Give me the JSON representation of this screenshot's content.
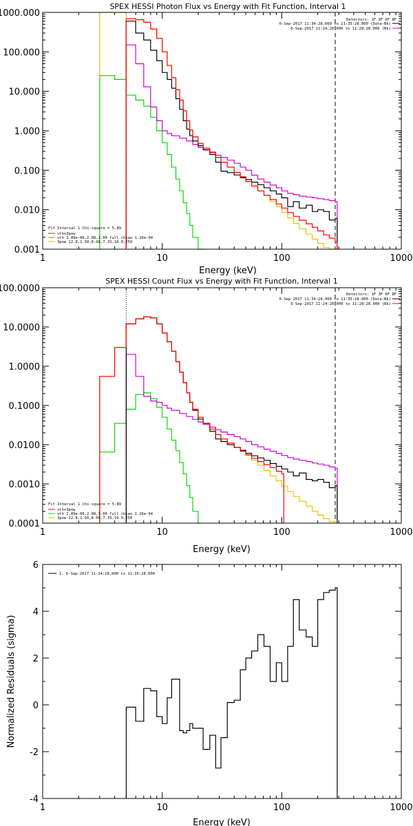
{
  "chart_data": [
    {
      "type": "line",
      "title": "SPEX HESSI Photon Flux vs Energy with Fit Function, Interval 1",
      "xlabel": "Energy (keV)",
      "ylabel": "",
      "xscale": "log",
      "yscale": "log",
      "xlim": [
        1,
        1000
      ],
      "ylim": [
        0.001,
        1000
      ],
      "x_tick_labels": [
        "1",
        "10",
        "100",
        "1000"
      ],
      "y_tick_labels": [
        "0.001",
        "0.010",
        "0.100",
        "1.000",
        "10.000",
        "100.000",
        "1000.000"
      ],
      "header_lines": [
        "Detectors: 1F 3F 6F 8F",
        "6-Sep-2017 11:34:28.000 to 11:35:28.000 (Data-Bk)",
        "6-Sep-2017 11:24:28.000 to 11:28:28.000 (Bk)"
      ],
      "legend_lines": [
        "Fit Interval 1    Chi-square = 5.89",
        "vth+3pow",
        "vth 2.89e-06,2.08,1.00  full chian 1.26e-04",
        "3pow 22.8,1.50,8.08,7.33,10.0,250"
      ],
      "fit_lower_keV": 5,
      "fit_upper_keV": 280,
      "series": [
        {
          "name": "data-bk",
          "color": "#000000",
          "x": [
            5,
            6,
            7,
            8,
            9,
            10,
            11,
            12,
            13,
            14,
            15,
            16,
            17,
            18,
            20,
            22,
            25,
            28,
            31,
            35,
            40,
            45,
            50,
            56,
            63,
            71,
            80,
            90,
            100,
            112,
            125,
            140,
            160,
            180,
            200,
            224,
            250,
            280
          ],
          "y": [
            600,
            300,
            200,
            110,
            60,
            30,
            20,
            12,
            6.5,
            3.5,
            1.8,
            1.1,
            0.75,
            0.55,
            0.42,
            0.33,
            0.25,
            0.16,
            0.095,
            0.087,
            0.076,
            0.065,
            0.058,
            0.05,
            0.043,
            0.036,
            0.03,
            0.025,
            0.02,
            0.012,
            0.016,
            0.011,
            0.013,
            0.009,
            0.01,
            0.009,
            0.0055,
            0.006
          ]
        },
        {
          "name": "vth+3pow",
          "color": "#ff0000",
          "x": [
            5,
            6,
            7,
            8,
            9,
            10,
            11,
            12,
            13,
            14,
            15,
            16,
            17,
            18,
            20,
            22,
            25,
            28,
            31,
            35,
            40,
            45,
            50,
            56,
            63,
            71,
            80,
            90,
            100,
            112,
            125,
            140,
            160,
            180,
            200,
            224,
            250,
            280
          ],
          "y": [
            690,
            650,
            560,
            380,
            220,
            100,
            45,
            22,
            11,
            6,
            3.2,
            1.8,
            1.05,
            0.7,
            0.48,
            0.36,
            0.28,
            0.21,
            0.16,
            0.12,
            0.088,
            0.068,
            0.052,
            0.04,
            0.03,
            0.023,
            0.018,
            0.014,
            0.011,
            0.0085,
            0.0068,
            0.0054,
            0.0044,
            0.0036,
            0.0029,
            0.0023,
            0.0019,
            0.0015
          ]
        },
        {
          "name": "vth",
          "color": "#00dd00",
          "x": [
            3,
            4,
            5,
            6,
            7,
            8,
            9,
            10,
            11,
            12,
            13,
            14,
            15,
            16,
            17,
            18,
            20,
            22
          ],
          "y": [
            25,
            20,
            8,
            6,
            4.2,
            2.2,
            1.0,
            0.5,
            0.25,
            0.12,
            0.06,
            0.03,
            0.015,
            0.008,
            0.004,
            0.002,
            0.001,
            0.0007
          ]
        },
        {
          "name": "3pow",
          "color": "#f0c000",
          "x": [
            3,
            4,
            5,
            6,
            7,
            8,
            9,
            10,
            11,
            12,
            13,
            14,
            15,
            16,
            17,
            18,
            20,
            22,
            25,
            28,
            31,
            35,
            40,
            45,
            50,
            56,
            63,
            71,
            80,
            90,
            100,
            112,
            125,
            140,
            160,
            180,
            200,
            224,
            250,
            280
          ],
          "y": [
            1000,
            1000,
            690,
            650,
            560,
            380,
            220,
            100,
            45,
            22,
            11,
            6,
            3.2,
            1.8,
            1.05,
            0.7,
            0.48,
            0.36,
            0.28,
            0.21,
            0.16,
            0.12,
            0.088,
            0.068,
            0.052,
            0.04,
            0.03,
            0.023,
            0.016,
            0.012,
            0.0085,
            0.0062,
            0.0045,
            0.0033,
            0.0024,
            0.0018,
            0.0014,
            0.0011,
            0.0009,
            0.0007
          ]
        },
        {
          "name": "background",
          "color": "#cc00cc",
          "x": [
            5,
            6,
            7,
            8,
            9,
            10,
            11,
            12,
            14,
            16,
            18,
            20,
            22,
            25,
            28,
            31,
            35,
            40,
            45,
            50,
            56,
            63,
            71,
            80,
            90,
            100,
            112,
            125,
            140,
            160,
            180,
            200,
            224,
            250,
            280
          ],
          "y": [
            150,
            50,
            13,
            4,
            1.8,
            1.0,
            0.85,
            0.75,
            0.65,
            0.55,
            0.45,
            0.38,
            0.33,
            0.29,
            0.24,
            0.21,
            0.18,
            0.15,
            0.12,
            0.1,
            0.075,
            0.06,
            0.05,
            0.042,
            0.036,
            0.03,
            0.026,
            0.024,
            0.022,
            0.021,
            0.02,
            0.019,
            0.018,
            0.017,
            0.016
          ]
        }
      ]
    },
    {
      "type": "line",
      "title": "SPEX HESSI Count Flux vs Energy with Fit Function, Interval 1",
      "xlabel": "Energy (keV)",
      "ylabel": "",
      "xscale": "log",
      "yscale": "log",
      "xlim": [
        1,
        1000
      ],
      "ylim": [
        0.0001,
        100
      ],
      "x_tick_labels": [
        "1",
        "10",
        "100",
        "1000"
      ],
      "y_tick_labels": [
        "0.0001",
        "0.0010",
        "0.0100",
        "0.1000",
        "1.0000",
        "10.0000",
        "100.0000"
      ],
      "header_lines": [
        "Detectors: 1F 3F 6F 8F",
        "6-Sep-2017 11:34:28.000 to 11:35:28.000 (Data-Bk)",
        "6-Sep-2017 11:24:28.000 to 11:28:28.000 (Bk)"
      ],
      "legend_lines": [
        "Fit Interval 1    Chi-square = 5.89",
        "vth+3pow",
        "vth 2.89e-06,2.08,1.00  full chian 1.26e-04",
        "3pow 22.8,1.50,8.08,7.33,10.0,250"
      ],
      "fit_lower_keV": 5,
      "fit_upper_keV": 280,
      "series": [
        {
          "name": "data-bk",
          "color": "#000000",
          "x": [
            5,
            6,
            7,
            8,
            9,
            10,
            11,
            12,
            13,
            14,
            15,
            16,
            17,
            18,
            20,
            22,
            25,
            28,
            31,
            35,
            40,
            45,
            50,
            56,
            63,
            71,
            80,
            90,
            100,
            112,
            125,
            140,
            160,
            180,
            200,
            224,
            250,
            280
          ],
          "y": [
            12,
            16,
            18,
            17,
            12,
            7,
            4.2,
            2.4,
            1.3,
            0.7,
            0.38,
            0.21,
            0.12,
            0.075,
            0.045,
            0.035,
            0.022,
            0.014,
            0.012,
            0.01,
            0.0085,
            0.0072,
            0.006,
            0.0052,
            0.0046,
            0.004,
            0.0033,
            0.0028,
            0.0024,
            0.002,
            0.0016,
            0.0019,
            0.0013,
            0.0012,
            0.0013,
            0.0011,
            0.0008,
            0.0009
          ]
        },
        {
          "name": "vth+3pow",
          "color": "#ff0000",
          "x": [
            3,
            4,
            5,
            6,
            7,
            8,
            9,
            10,
            11,
            12,
            13,
            14,
            15,
            16,
            17,
            18,
            20,
            22,
            25,
            28,
            31,
            35,
            40,
            45,
            50,
            56,
            63,
            71,
            80,
            90,
            100
          ],
          "y": [
            0.55,
            3.0,
            12,
            16,
            18,
            17,
            12,
            7,
            4.2,
            2.4,
            1.3,
            0.7,
            0.38,
            0.21,
            0.12,
            0.08,
            0.05,
            0.035,
            0.025,
            0.018,
            0.014,
            0.011,
            0.0085,
            0.0068,
            0.0055,
            0.0045,
            0.0037,
            0.0031,
            0.0026,
            0.0021,
            0.0018
          ]
        },
        {
          "name": "vth",
          "color": "#00dd00",
          "x": [
            3,
            4,
            5,
            6,
            7,
            8,
            9,
            10,
            11,
            12,
            13,
            14,
            15,
            16,
            17,
            18,
            20
          ],
          "y": [
            0.0065,
            0.035,
            0.08,
            0.19,
            0.21,
            0.15,
            0.09,
            0.05,
            0.025,
            0.013,
            0.007,
            0.0035,
            0.0018,
            0.0009,
            0.00045,
            0.0002,
            0.0001
          ]
        },
        {
          "name": "3pow",
          "color": "#f0c000",
          "x": [
            3,
            4,
            5,
            6,
            7,
            8,
            9,
            10,
            11,
            12,
            13,
            14,
            15,
            16,
            17,
            18,
            20,
            22,
            25,
            28,
            31,
            35,
            40,
            45,
            50,
            56,
            63,
            71,
            80,
            90,
            100,
            112,
            125,
            140,
            160,
            180,
            200,
            224,
            250,
            280
          ],
          "y": [
            0.55,
            3.0,
            12,
            16,
            18,
            17,
            12,
            7,
            4.2,
            2.4,
            1.3,
            0.7,
            0.38,
            0.21,
            0.12,
            0.08,
            0.05,
            0.035,
            0.025,
            0.018,
            0.014,
            0.011,
            0.0085,
            0.0068,
            0.0053,
            0.004,
            0.003,
            0.0022,
            0.0016,
            0.0012,
            0.00088,
            0.00064,
            0.00048,
            0.00036,
            0.00027,
            0.0002,
            0.00016,
            0.00013,
            0.00011,
            0.0001
          ]
        },
        {
          "name": "background",
          "color": "#cc00cc",
          "x": [
            5,
            6,
            7,
            8,
            9,
            10,
            11,
            12,
            14,
            16,
            18,
            20,
            22,
            25,
            28,
            31,
            35,
            40,
            45,
            50,
            56,
            63,
            71,
            80,
            90,
            100,
            112,
            125,
            140,
            160,
            180,
            200,
            224,
            250,
            280
          ],
          "y": [
            2.0,
            0.55,
            0.17,
            0.13,
            0.12,
            0.1,
            0.085,
            0.075,
            0.062,
            0.052,
            0.044,
            0.038,
            0.033,
            0.028,
            0.024,
            0.021,
            0.018,
            0.016,
            0.014,
            0.012,
            0.01,
            0.0088,
            0.0077,
            0.0068,
            0.006,
            0.0053,
            0.0047,
            0.0043,
            0.004,
            0.0037,
            0.0034,
            0.0032,
            0.003,
            0.0027,
            0.0025
          ]
        }
      ]
    },
    {
      "type": "line",
      "title": "",
      "xlabel": "Energy (keV)",
      "ylabel": "Normalized Residuals (sigma)",
      "xscale": "log",
      "yscale": "linear",
      "xlim": [
        1,
        1000
      ],
      "ylim": [
        -4,
        6
      ],
      "x_tick_labels": [
        "1",
        "10",
        "100",
        "1000"
      ],
      "y_tick_labels": [
        "-4",
        "-2",
        "0",
        "2",
        "4",
        "6"
      ],
      "legend_lines": [
        "1.  6-Sep-2017 11:34:28.000 to 11:35:28.000"
      ],
      "series": [
        {
          "name": "1.  6-Sep-2017 11:34:28.000 to 11:35:28.000",
          "color": "#000000",
          "x": [
            5,
            6,
            7,
            8,
            9,
            10,
            11,
            12,
            13,
            14,
            15,
            16,
            17,
            18,
            20,
            22,
            25,
            28,
            31,
            35,
            40,
            45,
            50,
            56,
            63,
            71,
            80,
            90,
            100,
            112,
            125,
            140,
            160,
            180,
            200,
            224,
            250,
            280
          ],
          "y": [
            -0.1,
            -0.7,
            0.7,
            0.6,
            -0.5,
            -0.8,
            0.3,
            1.1,
            1.1,
            -1.1,
            -1.2,
            -1.1,
            -0.8,
            -1.0,
            -1.0,
            -1.9,
            -1.3,
            -2.7,
            -1.4,
            0.1,
            0.2,
            1.5,
            2.0,
            2.3,
            3.0,
            2.5,
            1.0,
            1.8,
            1.0,
            2.5,
            4.5,
            3.2,
            2.9,
            2.5,
            4.5,
            4.8,
            4.9,
            5.0
          ]
        }
      ]
    }
  ]
}
